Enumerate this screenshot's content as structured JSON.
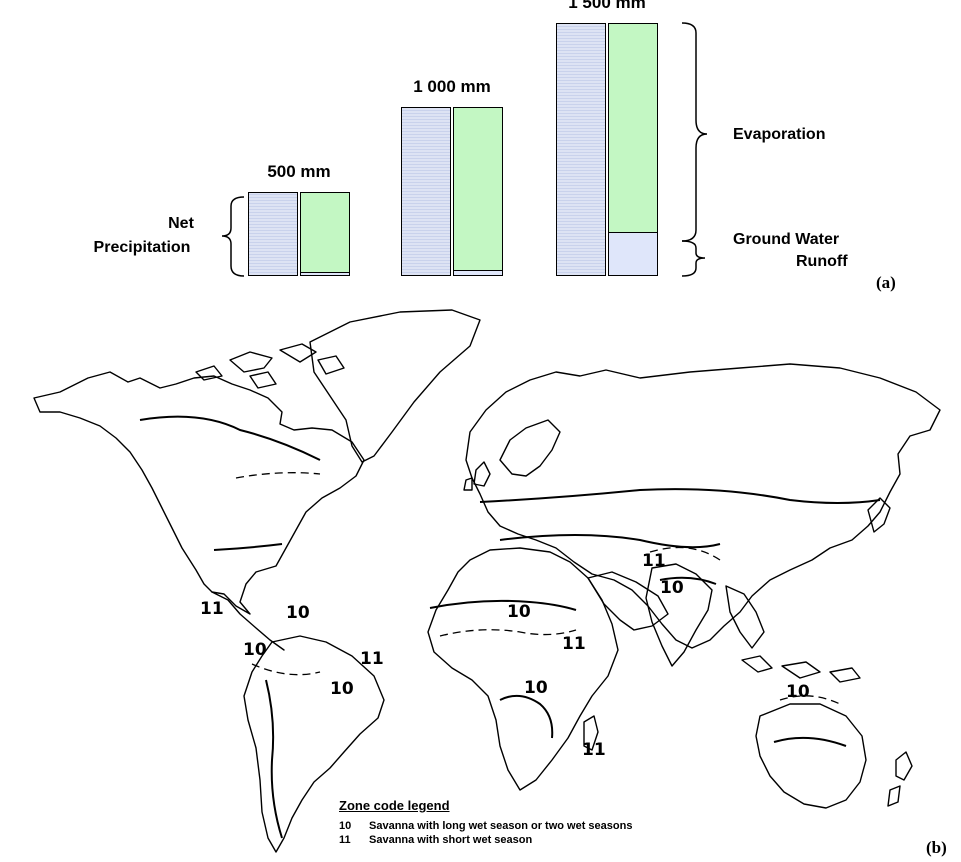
{
  "panel_a": {
    "panel_label": "(a)",
    "left_label": [
      "Net",
      "Precipitation"
    ],
    "right_labels": {
      "evaporation": "Evaporation",
      "runoff": [
        "Ground Water",
        "Runoff"
      ]
    },
    "colors": {
      "net_precipitation": "#dde3f4",
      "evaporation": "#c3f7c3",
      "ground_water_runoff": "#dfe6fa"
    }
  },
  "chart_data": {
    "type": "bar",
    "categories": [
      "500 mm",
      "1 000 mm",
      "1 500 mm"
    ],
    "series": [
      {
        "values": [
          500,
          1000,
          1500
        ]
      },
      {
        "values": [
          497,
          975,
          1250
        ]
      },
      {
        "values": [
          3,
          25,
          250
        ]
      }
    ]
  },
  "panel_b": {
    "panel_label": "(b)",
    "zone_labels": [
      "10",
      "10",
      "10",
      "10",
      "10",
      "10",
      "10",
      "10",
      "11",
      "11",
      "11",
      "11",
      "11"
    ],
    "legend": {
      "title": "Zone code legend",
      "entries": [
        {
          "code": "10",
          "text": "Savanna with long wet season or two wet seasons"
        },
        {
          "code": "11",
          "text": "Savanna with short wet season"
        }
      ]
    }
  }
}
